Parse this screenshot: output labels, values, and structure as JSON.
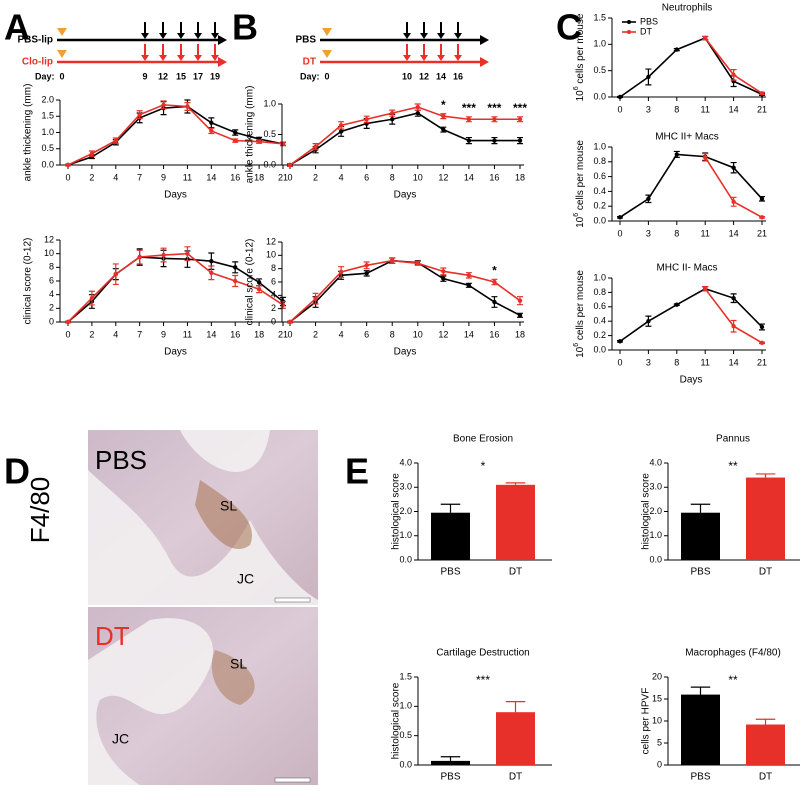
{
  "panel_labels": [
    "A",
    "B",
    "C",
    "D",
    "E"
  ],
  "timelines": [
    {
      "rows": [
        {
          "label": "PBS-lip",
          "color": "#000000"
        },
        {
          "label": "Clo-lip",
          "color": "#e8302a"
        }
      ],
      "day_label": "Day:",
      "days": [
        0,
        9,
        12,
        15,
        17,
        19
      ]
    },
    {
      "rows": [
        {
          "label": "PBS",
          "color": "#000000"
        },
        {
          "label": "DT",
          "color": "#e8302a"
        }
      ],
      "day_label": "Day:",
      "days": [
        0,
        10,
        12,
        14,
        16
      ]
    }
  ],
  "histology": {
    "stain": "F4/80",
    "images": [
      {
        "label": "PBS",
        "label_color": "#000000",
        "regions": [
          "SL",
          "JC"
        ]
      },
      {
        "label": "DT",
        "label_color": "#e8302a",
        "regions": [
          "SL",
          "JC"
        ]
      }
    ]
  },
  "chart_data": [
    {
      "type": "line",
      "categories": [
        0,
        2,
        4,
        7,
        9,
        11,
        14,
        16,
        18,
        21
      ],
      "xlabel": "Days",
      "ylabel": "ankle thickening (mm)",
      "ylim": [
        0,
        2
      ],
      "yticks": [
        {
          "value": 0,
          "label": "0.0"
        },
        0.5,
        {
          "value": 1,
          "label": "1.0"
        },
        1.5,
        {
          "value": 2,
          "label": "2.0"
        }
      ],
      "series": [
        {
          "color": "#000000",
          "values": [
            0,
            0.25,
            0.7,
            1.45,
            1.75,
            1.8,
            1.3,
            1.0,
            0.8,
            0.65
          ],
          "errors": [
            0.02,
            0.05,
            0.08,
            0.15,
            0.2,
            0.2,
            0.15,
            0.08,
            0.05,
            0.05
          ]
        },
        {
          "color": "#e8302a",
          "values": [
            0,
            0.35,
            0.75,
            1.55,
            1.85,
            1.8,
            1.05,
            0.75,
            0.72,
            0.65
          ],
          "errors": [
            0.02,
            0.08,
            0.08,
            0.12,
            0.12,
            0.12,
            0.08,
            0.05,
            0.05,
            0.05
          ]
        }
      ],
      "annotations": []
    },
    {
      "type": "line",
      "categories": [
        0,
        2,
        4,
        7,
        9,
        11,
        14,
        16,
        18,
        21
      ],
      "xlabel": "Days",
      "ylabel": "clinical score (0-12)",
      "ylim": [
        0,
        12
      ],
      "yticks": [
        0,
        2,
        4,
        6,
        8,
        10,
        12
      ],
      "series": [
        {
          "color": "#000000",
          "values": [
            0,
            3,
            7,
            9.5,
            9.3,
            9.2,
            8.9,
            8,
            5.8,
            3
          ],
          "errors": [
            0.1,
            1,
            0.8,
            1.2,
            1.2,
            1.2,
            1.2,
            0.8,
            0.5,
            0.6
          ]
        },
        {
          "color": "#e8302a",
          "values": [
            0,
            3.5,
            7,
            9.5,
            9.8,
            10,
            7.2,
            6,
            4.8,
            2.5
          ],
          "errors": [
            0.1,
            1,
            1.5,
            1,
            1,
            1,
            1,
            0.8,
            0.5,
            0.5
          ]
        }
      ],
      "annotations": []
    },
    {
      "type": "line",
      "categories": [
        0,
        2,
        4,
        6,
        8,
        10,
        12,
        14,
        16,
        18
      ],
      "xlabel": "Days",
      "ylabel": "ankle thickening (mm)",
      "ylim": [
        0,
        1
      ],
      "yticks": [
        {
          "value": 0,
          "label": "0.0"
        },
        0.5,
        {
          "value": 1,
          "label": "1.0"
        }
      ],
      "series": [
        {
          "color": "#000000",
          "values": [
            0,
            0.25,
            0.55,
            0.68,
            0.75,
            0.85,
            0.58,
            0.4,
            0.4,
            0.4
          ],
          "errors": [
            0.02,
            0.05,
            0.08,
            0.08,
            0.08,
            0.05,
            0.04,
            0.05,
            0.05,
            0.05
          ]
        },
        {
          "color": "#e8302a",
          "values": [
            0,
            0.3,
            0.65,
            0.75,
            0.85,
            0.95,
            0.8,
            0.75,
            0.75,
            0.75
          ],
          "errors": [
            0.02,
            0.05,
            0.06,
            0.05,
            0.05,
            0.05,
            0.04,
            0.04,
            0.04,
            0.04
          ]
        }
      ],
      "annotations": [
        {
          "text": "*",
          "x": 12
        },
        {
          "text": "***",
          "x": 14
        },
        {
          "text": "***",
          "x": 16
        },
        {
          "text": "***",
          "x": 18
        }
      ]
    },
    {
      "type": "line",
      "categories": [
        0,
        2,
        4,
        6,
        8,
        10,
        12,
        14,
        16,
        18
      ],
      "xlabel": "Days",
      "ylabel": "clinical score (0-12)",
      "ylim": [
        0,
        12
      ],
      "yticks": [
        0,
        2,
        4,
        6,
        8,
        10,
        12
      ],
      "series": [
        {
          "color": "#000000",
          "values": [
            0,
            3,
            7,
            7.3,
            9.2,
            8.9,
            6.5,
            5.5,
            3,
            1
          ],
          "errors": [
            0.1,
            0.8,
            0.6,
            0.4,
            0.4,
            0.3,
            0.4,
            0.3,
            0.8,
            0.3
          ]
        },
        {
          "color": "#e8302a",
          "values": [
            0,
            3.5,
            7.5,
            8.5,
            9.2,
            8.8,
            7.6,
            7,
            6,
            3.2
          ],
          "errors": [
            0.1,
            0.8,
            0.8,
            0.5,
            0.4,
            0.3,
            0.5,
            0.4,
            0.4,
            0.6
          ]
        }
      ],
      "annotations": [
        {
          "text": "*",
          "x": 16
        }
      ]
    },
    {
      "type": "line",
      "title": "Neutrophils",
      "categories": [
        0,
        3,
        8,
        11,
        14,
        21
      ],
      "ylabel": {
        "base": "10",
        "sup": "6",
        "text": " cells per mouse"
      },
      "ylim": [
        0,
        1.5
      ],
      "yticks": [
        {
          "value": 0,
          "label": "0.0"
        },
        0.5,
        {
          "value": 1,
          "label": "1.0"
        },
        1.5
      ],
      "legend": "upper left",
      "series": [
        {
          "name": "PBS",
          "color": "#000000",
          "values": [
            0,
            0.38,
            0.9,
            1.12,
            0.3,
            0.05
          ],
          "errors": [
            0.01,
            0.15,
            0.02,
            0.03,
            0.1,
            0.02
          ]
        },
        {
          "name": "DT",
          "color": "#e8302a",
          "values": [
            null,
            null,
            null,
            1.12,
            0.42,
            0.07
          ],
          "errors": [
            null,
            null,
            null,
            0.03,
            0.1,
            0.02
          ]
        }
      ],
      "annotations": []
    },
    {
      "type": "line",
      "title": "MHC II+ Macs",
      "categories": [
        0,
        3,
        8,
        11,
        14,
        21
      ],
      "ylabel": {
        "base": "10",
        "sup": "6",
        "text": " cells per mouse"
      },
      "ylim": [
        0,
        1
      ],
      "yticks": [
        {
          "value": 0,
          "label": "0.0"
        },
        0.2,
        0.4,
        0.6,
        0.8,
        {
          "value": 1,
          "label": "1.0"
        }
      ],
      "series": [
        {
          "color": "#000000",
          "values": [
            0.05,
            0.3,
            0.9,
            0.87,
            0.72,
            0.3
          ],
          "errors": [
            0.01,
            0.05,
            0.04,
            0.05,
            0.07,
            0.03
          ]
        },
        {
          "color": "#e8302a",
          "values": [
            null,
            null,
            null,
            0.86,
            0.26,
            0.05
          ],
          "errors": [
            null,
            null,
            null,
            0.05,
            0.06,
            0.01
          ]
        }
      ],
      "annotations": []
    },
    {
      "type": "line",
      "title": "MHC II- Macs",
      "categories": [
        0,
        3,
        8,
        11,
        14,
        21
      ],
      "xlabel": "Days",
      "ylabel": {
        "base": "10",
        "sup": "6",
        "text": " cells per mouse"
      },
      "ylim": [
        0,
        1
      ],
      "yticks": [
        {
          "value": 0,
          "label": "0.0"
        },
        0.2,
        0.4,
        0.6,
        0.8,
        {
          "value": 1,
          "label": "1.0"
        }
      ],
      "series": [
        {
          "color": "#000000",
          "values": [
            0.12,
            0.4,
            0.63,
            0.85,
            0.72,
            0.32
          ],
          "errors": [
            0.01,
            0.07,
            0.01,
            0.03,
            0.06,
            0.04
          ]
        },
        {
          "color": "#e8302a",
          "values": [
            null,
            null,
            null,
            0.85,
            0.33,
            0.1
          ],
          "errors": [
            null,
            null,
            null,
            0.03,
            0.08,
            0.01
          ]
        }
      ],
      "annotations": []
    },
    {
      "type": "bar",
      "title": "Bone Erosion",
      "categories": [
        "PBS",
        "DT"
      ],
      "values": [
        1.95,
        3.1
      ],
      "errors": [
        0.35,
        0.08
      ],
      "colors": [
        "#000000",
        "#e8302a"
      ],
      "ylabel": "histological score",
      "ylim": [
        0,
        4
      ],
      "yticks": [
        {
          "value": 0,
          "label": "0.0"
        },
        {
          "value": 1,
          "label": "1.0"
        },
        {
          "value": 2,
          "label": "2.0"
        },
        {
          "value": 3,
          "label": "3.0"
        },
        {
          "value": 4,
          "label": "4.0"
        }
      ],
      "annotations": [
        {
          "text": "*"
        }
      ]
    },
    {
      "type": "bar",
      "title": "Pannus",
      "categories": [
        "PBS",
        "DT"
      ],
      "values": [
        1.95,
        3.4
      ],
      "errors": [
        0.35,
        0.15
      ],
      "colors": [
        "#000000",
        "#e8302a"
      ],
      "ylabel": "histological score",
      "ylim": [
        0,
        4
      ],
      "yticks": [
        {
          "value": 0,
          "label": "0.0"
        },
        {
          "value": 1,
          "label": "1.0"
        },
        {
          "value": 2,
          "label": "2.0"
        },
        {
          "value": 3,
          "label": "3.0"
        },
        {
          "value": 4,
          "label": "4.0"
        }
      ],
      "annotations": [
        {
          "text": "**"
        }
      ]
    },
    {
      "type": "bar",
      "title": "Cartilage Destruction",
      "categories": [
        "PBS",
        "DT"
      ],
      "values": [
        0.07,
        0.9
      ],
      "errors": [
        0.07,
        0.18
      ],
      "colors": [
        "#000000",
        "#e8302a"
      ],
      "ylabel": "histological score",
      "ylim": [
        0,
        1.5
      ],
      "yticks": [
        {
          "value": 0,
          "label": "0.0"
        },
        0.5,
        {
          "value": 1,
          "label": "1.0"
        },
        1.5
      ],
      "annotations": [
        {
          "text": "***"
        }
      ]
    },
    {
      "type": "bar",
      "title": "Macrophages (F4/80)",
      "categories": [
        "PBS",
        "DT"
      ],
      "values": [
        16,
        9.2
      ],
      "errors": [
        1.7,
        1.2
      ],
      "colors": [
        "#000000",
        "#e8302a"
      ],
      "ylabel": "cells per HPVF",
      "ylim": [
        0,
        20
      ],
      "yticks": [
        0,
        5,
        10,
        15,
        20
      ],
      "annotations": [
        {
          "text": "**"
        }
      ]
    }
  ]
}
